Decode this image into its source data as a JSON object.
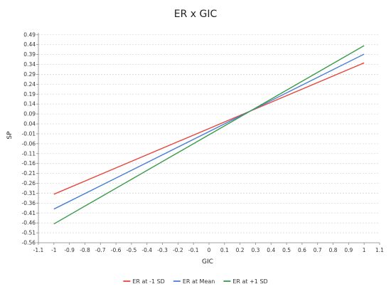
{
  "chart_data": {
    "type": "line",
    "title": "ER x GIC",
    "xlabel": "GIC",
    "ylabel": "SP",
    "xlim": [
      -1.1,
      1.1
    ],
    "ylim": [
      -0.56,
      0.54
    ],
    "x_ticks": [
      "-1.1",
      "-1",
      "-0.9",
      "-0.8",
      "-0.7",
      "-0.6",
      "-0.5",
      "-0.4",
      "-0.3",
      "-0.2",
      "-0.1",
      "0",
      "0.1",
      "0.2",
      "0.3",
      "0.4",
      "0.5",
      "0.6",
      "0.7",
      "0.8",
      "0.9",
      "1",
      "1.1"
    ],
    "y_ticks": [
      "0.49",
      "0.44",
      "0.39",
      "0.34",
      "0.29",
      "0.24",
      "0.19",
      "0.14",
      "0.09",
      "0.04",
      "-0.01",
      "-0.06",
      "-0.11",
      "-0.16",
      "-0.21",
      "-0.26",
      "-0.31",
      "-0.36",
      "-0.41",
      "-0.46",
      "-0.51",
      "-0.56"
    ],
    "grid": "horizontal-dashed",
    "legend_position": "bottom",
    "series": [
      {
        "name": "ER at -1 SD",
        "color": "#e8453c",
        "x": [
          -1,
          1
        ],
        "y": [
          -0.315,
          0.348
        ]
      },
      {
        "name": "ER at Mean",
        "color": "#4a7fd6",
        "x": [
          -1,
          1
        ],
        "y": [
          -0.39,
          0.392
        ]
      },
      {
        "name": "ER at +1 SD",
        "color": "#3a9a4a",
        "x": [
          -1,
          1
        ],
        "y": [
          -0.465,
          0.435
        ]
      }
    ]
  }
}
